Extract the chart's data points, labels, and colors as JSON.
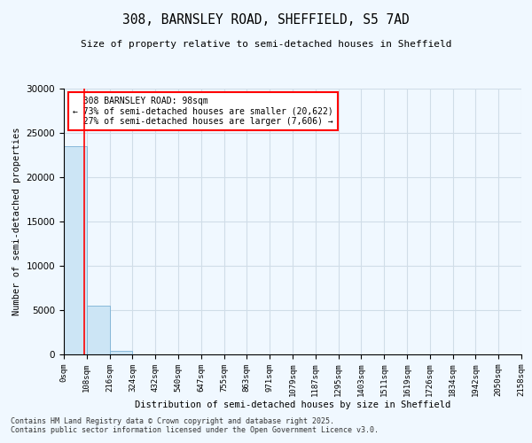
{
  "title_line1": "308, BARNSLEY ROAD, SHEFFIELD, S5 7AD",
  "title_line2": "Size of property relative to semi-detached houses in Sheffield",
  "xlabel": "Distribution of semi-detached houses by size in Sheffield",
  "ylabel": "Number of semi-detached properties",
  "property_size": 98,
  "property_label": "308 BARNSLEY ROAD: 98sqm",
  "pct_smaller": 73,
  "count_smaller": 20622,
  "pct_larger": 27,
  "count_larger": 7606,
  "bin_edges": [
    0,
    108,
    216,
    324,
    432,
    540,
    647,
    755,
    863,
    971,
    1079,
    1187,
    1295,
    1403,
    1511,
    1619,
    1726,
    1834,
    1942,
    2050,
    2158
  ],
  "bin_labels": [
    "0sqm",
    "108sqm",
    "216sqm",
    "324sqm",
    "432sqm",
    "540sqm",
    "647sqm",
    "755sqm",
    "863sqm",
    "971sqm",
    "1079sqm",
    "1187sqm",
    "1295sqm",
    "1403sqm",
    "1511sqm",
    "1619sqm",
    "1726sqm",
    "1834sqm",
    "1942sqm",
    "2050sqm",
    "2158sqm"
  ],
  "bar_heights": [
    23500,
    5500,
    400,
    30,
    10,
    5,
    3,
    2,
    1,
    1,
    1,
    1,
    0,
    0,
    0,
    0,
    0,
    0,
    0,
    0
  ],
  "bar_color": "#cce5f5",
  "bar_edge_color": "#7ab0d4",
  "vline_color": "red",
  "ylim": [
    0,
    30000
  ],
  "yticks": [
    0,
    5000,
    10000,
    15000,
    20000,
    25000,
    30000
  ],
  "footnote_line1": "Contains HM Land Registry data © Crown copyright and database right 2025.",
  "footnote_line2": "Contains public sector information licensed under the Open Government Licence v3.0.",
  "bg_color": "#f0f8ff",
  "grid_color": "#d0dde8"
}
